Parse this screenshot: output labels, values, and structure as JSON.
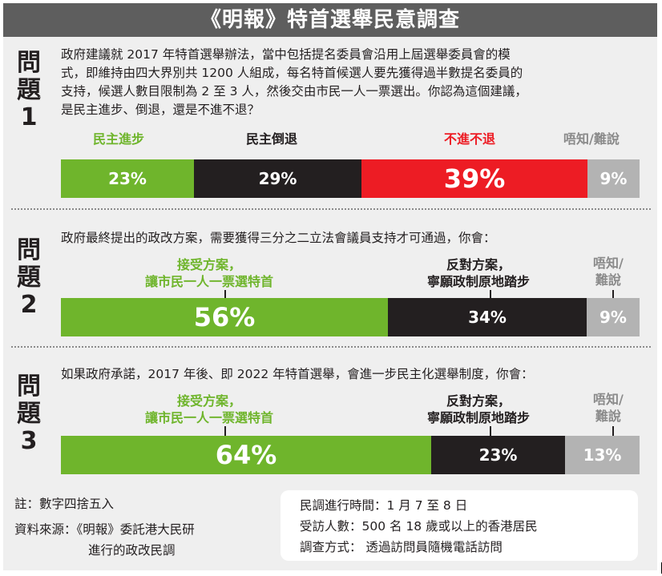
{
  "title": "《明報》特首選舉民意調查",
  "colors": {
    "support": "#6fb52c",
    "oppose": "#231f20",
    "neutral": "#ed1c24",
    "unknown": "#b3b3b3",
    "header": "#5e5e5e",
    "panel": "#efefef"
  },
  "chart_data": [
    {
      "type": "bar",
      "stacked": true,
      "question_label": "問題1",
      "question": "政府建議就 2017 年特首選舉辦法，當中包括提名委員會沿用上屆選舉委員會的模式，即維持由四大界別共 1200 人組成，每名特首候選人要先獲得過半數提名委員的支持，候選人數目限制為 2 至 3 人，然後交由市民一人一票選出。你認為這個建議，是民主進步、倒退，還是不進不退？",
      "categories": [
        "民主進步",
        "民主倒退",
        "不進不退",
        "唔知/難說"
      ],
      "values": [
        23,
        29,
        39,
        9
      ],
      "labels": [
        "23%",
        "29%",
        "39%",
        "9%"
      ]
    },
    {
      "type": "bar",
      "stacked": true,
      "question_label": "問題2",
      "question": "政府最終提出的政改方案，需要獲得三分之二立法會議員支持才可通過，你會：",
      "categories": [
        "接受方案，讓市民一人一票選特首",
        "反對方案，寧願政制原地踏步",
        "唔知/難說"
      ],
      "values": [
        56,
        34,
        9
      ],
      "labels": [
        "56%",
        "34%",
        "9%"
      ]
    },
    {
      "type": "bar",
      "stacked": true,
      "question_label": "問題3",
      "question": "如果政府承諾，2017 年後、即 2022 年特首選舉，會進一步民主化選舉制度，你會：",
      "categories": [
        "接受方案，讓市民一人一票選特首",
        "反對方案，寧願政制原地踏步",
        "唔知/難說"
      ],
      "values": [
        64,
        23,
        13
      ],
      "labels": [
        "64%",
        "23%",
        "13%"
      ]
    }
  ],
  "q1": {
    "label_a": "問",
    "label_b": "題",
    "label_c": "1",
    "lines": [
      "政府建議就 2017 年特首選舉辦法，當中包括提名委員會沿用上屆選舉委員會的模",
      "式，即維持由四大界別共 1200 人組成，每名特首候選人要先獲得過半數提名委員的",
      "支持，候選人數目限制為 2 至 3 人，然後交由市民一人一票選出。你認為這個建議，",
      "是民主進步、倒退，還是不進不退？"
    ],
    "cat1": "民主進步",
    "cat2": "民主倒退",
    "cat3": "不進不退",
    "cat4": "唔知/難說",
    "v1": "23%",
    "v2": "29%",
    "v3": "39%",
    "v4": "9%"
  },
  "q2": {
    "label_a": "問",
    "label_b": "題",
    "label_c": "2",
    "line": "政府最終提出的政改方案，需要獲得三分之二立法會議員支持才可通過，你會：",
    "cat1_l1": "接受方案，",
    "cat1_l2": "讓市民一人一票選特首",
    "cat2_l1": "反對方案，",
    "cat2_l2": "寧願政制原地踏步",
    "cat3_l1": "唔知/",
    "cat3_l2": "難說",
    "v1": "56%",
    "v2": "34%",
    "v3": "9%"
  },
  "q3": {
    "label_a": "問",
    "label_b": "題",
    "label_c": "3",
    "line": "如果政府承諾，2017 年後、即 2022 年特首選舉，會進一步民主化選舉制度，你會：",
    "cat1_l1": "接受方案，",
    "cat1_l2": "讓市民一人一票選特首",
    "cat2_l1": "反對方案，",
    "cat2_l2": "寧願政制原地踏步",
    "cat3_l1": "唔知/",
    "cat3_l2": "難說",
    "v1": "64%",
    "v2": "23%",
    "v3": "13%"
  },
  "notes": {
    "note": "註：數字四捨五入",
    "source_l1": "資料來源：《明報》委託港大民研",
    "source_l2": "進行的政改民調"
  },
  "info": {
    "date": "民調進行時間：1 月 7 至 8 日",
    "sample": "受訪人數：500 名 18 歲或以上的香港居民",
    "method": "調查方式： 透過訪問員隨機電話訪問"
  }
}
